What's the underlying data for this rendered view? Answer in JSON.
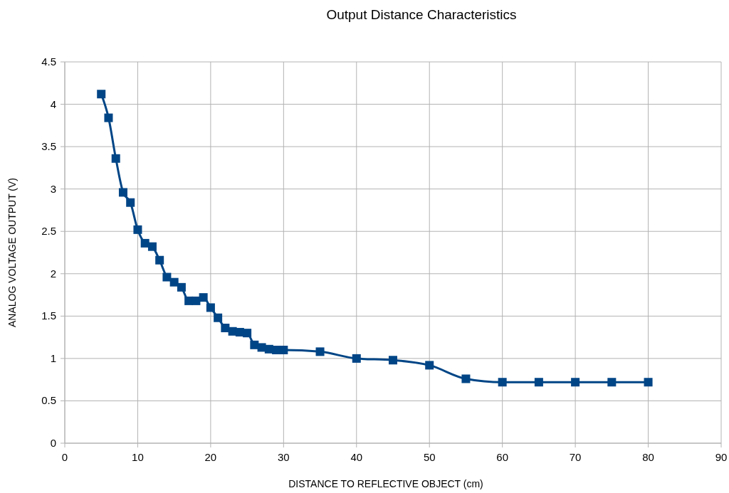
{
  "chart_data": {
    "type": "line",
    "title": "Output Distance Characteristics",
    "xlabel": "DISTANCE TO REFLECTIVE OBJECT (cm)",
    "ylabel": "ANALOG VOLTAGE OUTPUT (V)",
    "x": [
      5,
      6,
      7,
      8,
      9,
      10,
      11,
      12,
      13,
      14,
      15,
      16,
      17,
      18,
      19,
      20,
      21,
      22,
      23,
      24,
      25,
      26,
      27,
      28,
      29,
      30,
      35,
      40,
      45,
      50,
      55,
      60,
      65,
      70,
      75,
      80
    ],
    "series": [
      {
        "color": "#004586",
        "values": [
          4.12,
          3.84,
          3.36,
          2.96,
          2.84,
          2.52,
          2.36,
          2.32,
          2.16,
          1.96,
          1.9,
          1.84,
          1.68,
          1.68,
          1.72,
          1.6,
          1.48,
          1.36,
          1.32,
          1.31,
          1.3,
          1.16,
          1.13,
          1.11,
          1.1,
          1.1,
          1.08,
          1.0,
          0.98,
          0.92,
          0.76,
          0.72,
          0.72,
          0.72,
          0.72,
          0.72
        ]
      }
    ],
    "xlim": [
      0,
      90
    ],
    "xticks": [
      0,
      10,
      20,
      30,
      40,
      50,
      60,
      70,
      80,
      90
    ],
    "ylim": [
      0,
      4.5
    ],
    "yticks": [
      0,
      0.5,
      1,
      1.5,
      2,
      2.5,
      3,
      3.5,
      4,
      4.5
    ],
    "grid": true,
    "marker": "square",
    "line_style": "solid"
  }
}
